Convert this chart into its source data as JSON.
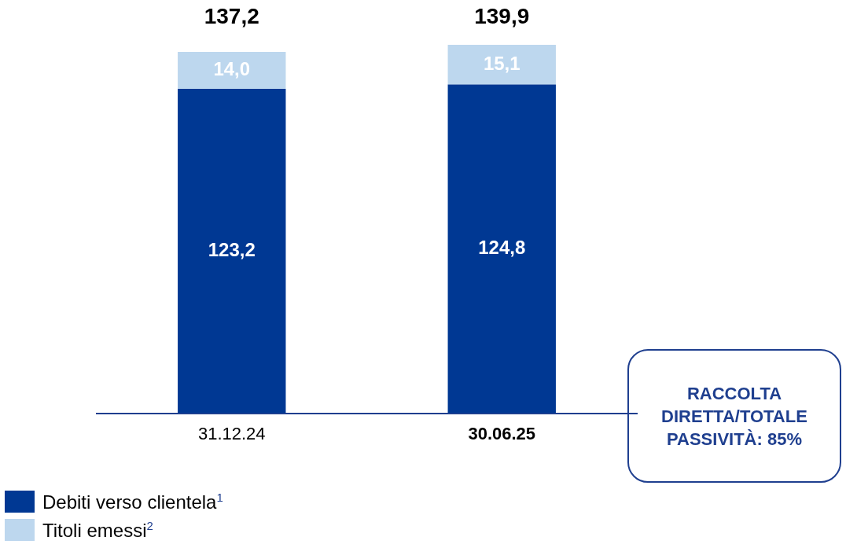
{
  "chart_data": {
    "type": "bar",
    "stacked": true,
    "categories": [
      "31.12.24",
      "30.06.25"
    ],
    "series": [
      {
        "name": "Debiti verso clientela$^{1}$",
        "color": "#003893",
        "values": [
          123.2,
          124.8
        ],
        "value_labels": [
          "123,2",
          "124,8"
        ]
      },
      {
        "name": "Titoli emessi$^{2}$",
        "color": "#bdd7ee",
        "values": [
          14.0,
          15.1
        ],
        "value_labels": [
          "14,0",
          "15,1"
        ]
      }
    ],
    "totals": [
      "137,2",
      "139,9"
    ],
    "legend": "bottom left",
    "grid": false,
    "tick_labels": "x",
    "annotations": [
      "RACCOLTA DIRETTA/TOTALE PASSIVITÀ: 85%"
    ]
  }
}
